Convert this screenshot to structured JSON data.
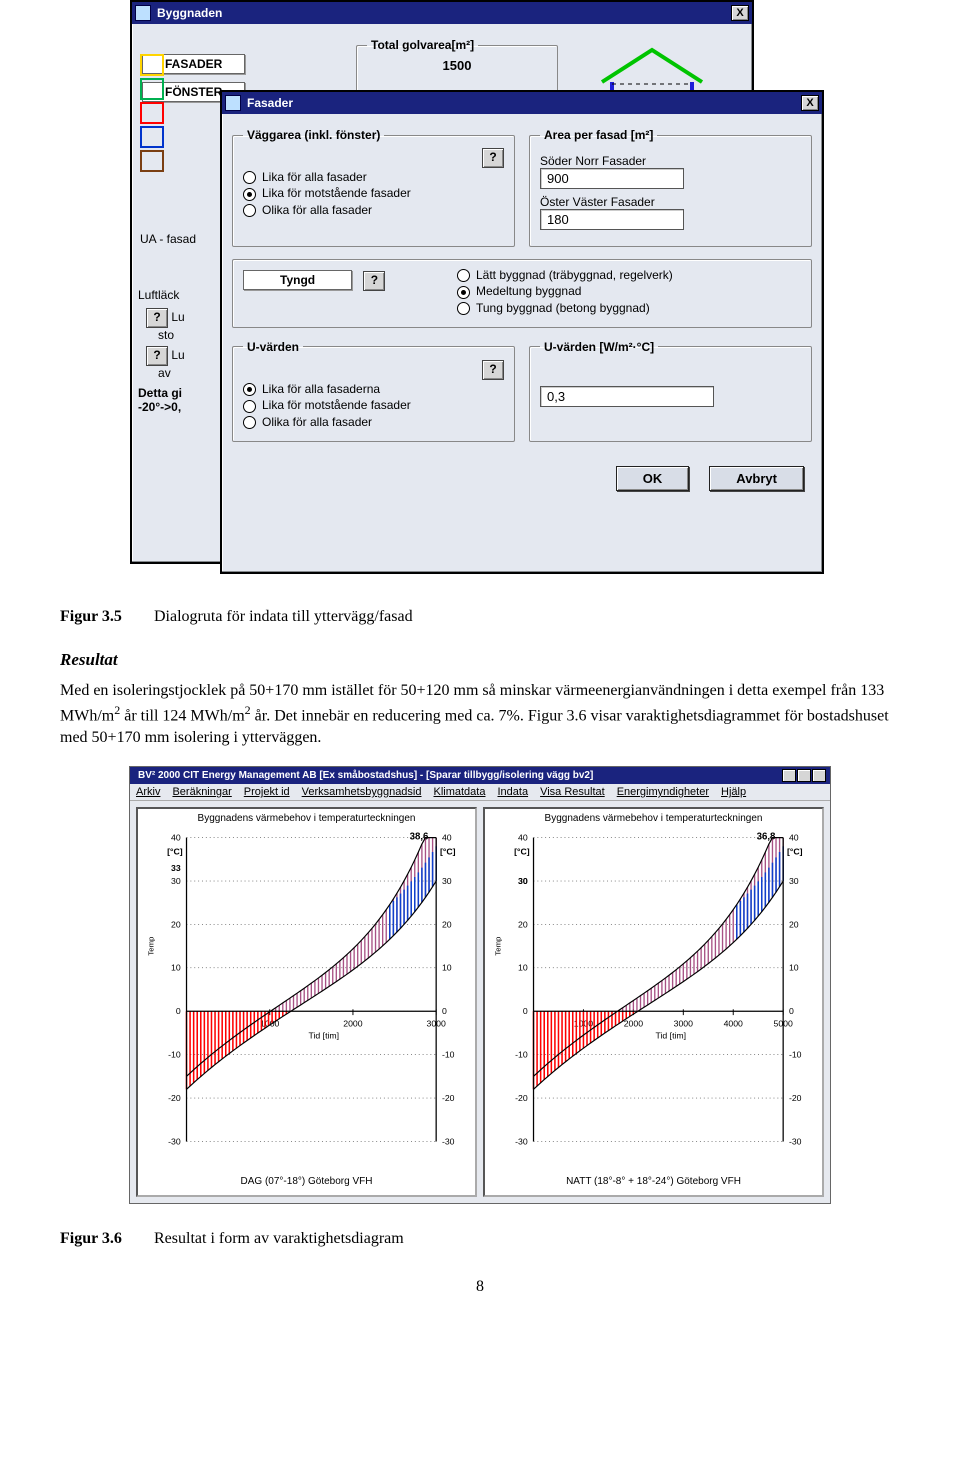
{
  "back_window": {
    "title": "Byggnaden",
    "total_area_label": "Total golvarea[m²]",
    "total_area_value": "1500",
    "btn_fasader": "FASADER",
    "btn_fonster": "FÖNSTER",
    "ua_label": "UA - fasad",
    "luft_label": "Luftläck",
    "lu1": "Lu",
    "sto": "sto",
    "av": "av",
    "detta": "Detta gi",
    "range": "-20°->0,",
    "stripe_colors": [
      "#ffd400",
      "#00b050",
      "#ff0000",
      "#0033cc",
      "#7a3e12"
    ],
    "house_roof_color": "#00c400",
    "house_wall_color": "#1e1ed8"
  },
  "front_window": {
    "title": "Fasader",
    "vaggarea": {
      "legend": "Väggarea (inkl. fönster)",
      "opts": [
        {
          "label": "Lika för alla fasader",
          "selected": false
        },
        {
          "label": "Lika för motstående fasader",
          "selected": true
        },
        {
          "label": "Olika för alla fasader",
          "selected": false
        }
      ]
    },
    "area_per_fasad": {
      "legend": "Area per fasad [m²]",
      "rows": [
        {
          "label": "Söder Norr Fasader",
          "value": "900"
        },
        {
          "label": "Öster Väster Fasader",
          "value": "180"
        }
      ]
    },
    "tyngd": {
      "legend": "Tyngd",
      "opts": [
        {
          "label": "Lätt byggnad (träbyggnad, regelverk)",
          "selected": false
        },
        {
          "label": "Medeltung byggnad",
          "selected": true
        },
        {
          "label": "Tung byggnad (betong byggnad)",
          "selected": false
        }
      ]
    },
    "uvarden": {
      "legend": "U-värden",
      "opts": [
        {
          "label": "Lika för alla fasaderna",
          "selected": true
        },
        {
          "label": "Lika för motstående fasader",
          "selected": false
        },
        {
          "label": "Olika för alla fasader",
          "selected": false
        }
      ]
    },
    "uvarden_group": {
      "legend": "U-värden [W/m²·°C]",
      "value": "0,3"
    },
    "ok_label": "OK",
    "cancel_label": "Avbryt",
    "help_char": "?"
  },
  "fig35_no": "Figur 3.5",
  "fig35_text": "Dialogruta för indata till yttervägg/fasad",
  "resultat_head": "Resultat",
  "body_text": "Med en isoleringstjocklek på 50+170 mm istället för 50+120 mm så minskar värmeenergianvändningen i detta exempel från 133 MWh/m² år till 124 MWh/m² år. Det innebär en reducering med ca. 7%. Figur 3.6 visar varaktighetsdiagrammet för bostadshuset med 50+170 mm isolering i ytterväggen.",
  "diag": {
    "app_title": "BV² 2000 CIT Energy Management AB [Ex småbostadshus] - [Sparar tillbygg/isolering vägg bv2]",
    "menus": [
      "Arkiv",
      "Beräkningar",
      "Projekt id",
      "Verksamhetsbyggnadsid",
      "Klimatdata",
      "Indata",
      "Visa Resultat",
      "Energimyndigheter",
      "Hjälp"
    ],
    "left": {
      "title": "Byggnadens värmebehov i temperaturteckningen",
      "footer": "DAG (07°-18°)   Göteborg VFH",
      "ylabel": "[°C]",
      "ymax_value": "38,6",
      "series_upper_color": "#ff0000",
      "series_area_color": "#9a3570",
      "series_blue_color": "#1040cc",
      "y_ticks": [
        40,
        30,
        20,
        10,
        0,
        -10,
        -20,
        -30
      ],
      "pos_mark": 33,
      "x_ticks": [
        0,
        1000,
        2000,
        3000
      ],
      "x_label": "Tid [tim]"
    },
    "right": {
      "title": "Byggnadens värmebehov i temperaturteckningen",
      "footer": "NATT (18°-8° + 18°-24°)   Göteborg VFH",
      "ylabel": "[°C]",
      "ymax_value": "36,8",
      "series_upper_color": "#ff0000",
      "series_area_color": "#9a3570",
      "series_blue_color": "#1040cc",
      "y_ticks": [
        40,
        30,
        20,
        10,
        0,
        -10,
        -20,
        -30
      ],
      "pos_mark": 30,
      "x_ticks": [
        0,
        1000,
        2000,
        3000,
        4000,
        5000
      ],
      "x_label": "Tid [tim]"
    },
    "colors": {
      "grid": "#000000",
      "axis": "#000000",
      "panel_bg": "#ffffff"
    }
  },
  "fig36_no": "Figur 3.6",
  "fig36_text": "Resultat i form av varaktighetsdiagram",
  "page_no": "8"
}
